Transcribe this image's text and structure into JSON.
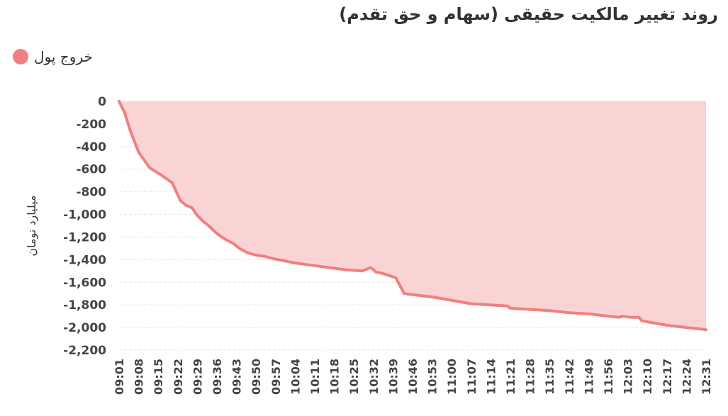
{
  "chart_data": {
    "type": "area",
    "title": "روند تغییر مالکیت حقیقی (سهام و حق تقدم)",
    "ylabel": "میلیارد تومان",
    "xlabel": "",
    "ylim": [
      -2200,
      0
    ],
    "yticks": [
      0,
      -200,
      -400,
      -600,
      -800,
      -1000,
      -1200,
      -1400,
      -1600,
      -1800,
      -2000,
      -2200
    ],
    "ytick_labels": [
      "0",
      "-200",
      "-400",
      "-600",
      "-800",
      "-1,000",
      "-1,200",
      "-1,400",
      "-1,600",
      "-1,800",
      "-2,000",
      "-2,200"
    ],
    "xlim": [
      541,
      751
    ],
    "xtick_labels": [
      "09:01",
      "09:08",
      "09:15",
      "09:22",
      "09:29",
      "09:36",
      "09:43",
      "09:50",
      "09:57",
      "10:04",
      "10:11",
      "10:18",
      "10:25",
      "10:32",
      "10:39",
      "10:46",
      "10:53",
      "11:00",
      "11:07",
      "11:14",
      "11:21",
      "11:28",
      "11:35",
      "11:42",
      "11:49",
      "11:56",
      "12:03",
      "12:10",
      "12:17",
      "12:24",
      "12:31"
    ],
    "grid": true,
    "legend_position": "top-left",
    "series": [
      {
        "name": "خروج پول",
        "color": "#f08080",
        "fill": "#fad4d4",
        "x": [
          "09:01",
          "09:02",
          "09:03",
          "09:05",
          "09:08",
          "09:12",
          "09:16",
          "09:20",
          "09:23",
          "09:25",
          "09:27",
          "09:29",
          "09:31",
          "09:33",
          "09:36",
          "09:39",
          "09:42",
          "09:44",
          "09:47",
          "09:50",
          "09:53",
          "09:56",
          "10:00",
          "10:04",
          "10:10",
          "10:16",
          "10:22",
          "10:28",
          "10:31",
          "10:33",
          "10:35",
          "10:40",
          "10:43",
          "10:46",
          "10:53",
          "11:00",
          "11:07",
          "11:14",
          "11:20",
          "11:21",
          "11:28",
          "11:35",
          "11:42",
          "11:49",
          "11:56",
          "12:00",
          "12:01",
          "12:04",
          "12:07",
          "12:08",
          "12:10",
          "12:17",
          "12:24",
          "12:28",
          "12:31"
        ],
        "y": [
          0,
          -50,
          -100,
          -260,
          -450,
          -590,
          -650,
          -720,
          -880,
          -920,
          -940,
          -1010,
          -1060,
          -1100,
          -1170,
          -1220,
          -1260,
          -1300,
          -1340,
          -1360,
          -1370,
          -1390,
          -1410,
          -1430,
          -1450,
          -1470,
          -1490,
          -1500,
          -1470,
          -1510,
          -1520,
          -1560,
          -1700,
          -1710,
          -1730,
          -1760,
          -1790,
          -1800,
          -1810,
          -1830,
          -1840,
          -1850,
          -1870,
          -1880,
          -1900,
          -1910,
          -1900,
          -1910,
          -1910,
          -1940,
          -1950,
          -1980,
          -2000,
          -2010,
          -2020
        ]
      }
    ]
  }
}
